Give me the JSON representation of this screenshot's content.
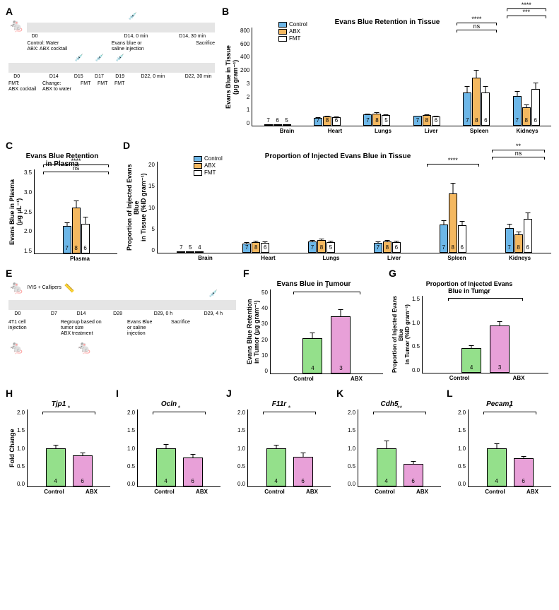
{
  "colors": {
    "control_blue": "#6db7e8",
    "abx_orange": "#f4b860",
    "fmt_white": "#ffffff",
    "control_green": "#94e08b",
    "abx_pink": "#e8a0d8",
    "axis": "#000000",
    "timeline_bg": "#e5e5e5"
  },
  "panelA": {
    "label": "A",
    "top": {
      "ticks": [
        "D0",
        "D14, 0 min",
        "D14, 30 min"
      ],
      "annotations": [
        "Control: Water\nABX: ABX cocktail",
        "Evans blue or\nsaline injection",
        "Sacrifice"
      ]
    },
    "bottom": {
      "ticks": [
        "D0",
        "D14",
        "D15",
        "D17",
        "D19",
        "D22, 0 min",
        "D22, 30 min"
      ],
      "annotations": [
        "FMT:\nABX cocktail",
        "Change:\nABX to water",
        "FMT",
        "FMT",
        "FMT",
        "",
        ""
      ]
    }
  },
  "panelB": {
    "label": "B",
    "title": "Evans Blue Retention in Tissue",
    "y_label": "Evans Blue in Tissue\n(μg gram⁻¹)",
    "ymax": 800,
    "ytick_step": 200,
    "ybreak_low": 3,
    "y_ticks": [
      "800",
      "600",
      "400",
      "200",
      "3",
      "2",
      "1",
      "0"
    ],
    "legend": [
      "Control",
      "ABX",
      "FMT"
    ],
    "categories": [
      "Brain",
      "Heart",
      "Lungs",
      "Liver",
      "Spleen",
      "Kidneys"
    ],
    "series": {
      "control": {
        "values": [
          1.5,
          65,
          90,
          78,
          270,
          240
        ],
        "n": [
          7,
          7,
          7,
          7,
          7,
          7
        ],
        "err": [
          0.5,
          10,
          15,
          12,
          60,
          50
        ]
      },
      "abx": {
        "values": [
          1.2,
          75,
          100,
          85,
          390,
          150
        ],
        "n": [
          6,
          8,
          8,
          8,
          8,
          8
        ],
        "err": [
          0.4,
          12,
          15,
          14,
          70,
          30
        ]
      },
      "fmt": {
        "values": [
          1.3,
          70,
          85,
          75,
          270,
          300
        ],
        "n": [
          5,
          6,
          5,
          6,
          6,
          6
        ],
        "err": [
          0.5,
          12,
          14,
          12,
          60,
          60
        ]
      }
    },
    "sigs": [
      {
        "group": 4,
        "label": "ns",
        "between": [
          0,
          2
        ]
      },
      {
        "group": 4,
        "label": "****",
        "between": [
          0,
          1
        ]
      },
      {
        "group": 5,
        "label": "***",
        "between": [
          0,
          2
        ]
      },
      {
        "group": 5,
        "label": "****",
        "between": [
          0,
          1
        ]
      }
    ]
  },
  "panelC": {
    "label": "C",
    "title": "Evans Blue Retention\nin Plasma",
    "y_label": "Evans Blue in Plasma\n(μg μL⁻¹)",
    "ymax": 3.5,
    "y_ticks": [
      "3.5",
      "3.0",
      "2.5",
      "2.0",
      "1.5"
    ],
    "categories": [
      "Plasma"
    ],
    "series": {
      "control": {
        "values": [
          2.15
        ],
        "n": [
          7
        ],
        "err": [
          0.12
        ]
      },
      "abx": {
        "values": [
          2.6
        ],
        "n": [
          8
        ],
        "err": [
          0.18
        ]
      },
      "fmt": {
        "values": [
          2.2
        ],
        "n": [
          6
        ],
        "err": [
          0.2
        ]
      }
    },
    "sigs": [
      {
        "label": "ns",
        "between": [
          0,
          2
        ]
      },
      {
        "label": "****",
        "between": [
          0,
          1
        ]
      }
    ]
  },
  "panelD": {
    "label": "D",
    "title": "Proportion of Injected Evans Blue in Tissue",
    "y_label": "Proportion of Injected Evans Blue\nin Tissue (%ID gram⁻¹)",
    "ymax": 20,
    "y_ticks": [
      "20",
      "15",
      "10",
      "5",
      "0"
    ],
    "legend": [
      "Control",
      "ABX",
      "FMT"
    ],
    "categories": [
      "Brain",
      "Heart",
      "Lungs",
      "Liver",
      "Spleen",
      "Kidneys"
    ],
    "series": {
      "control": {
        "values": [
          0.3,
          2.0,
          2.5,
          2.2,
          6.2,
          5.5
        ],
        "n": [
          7,
          7,
          7,
          7,
          7,
          7
        ],
        "err": [
          0.1,
          0.5,
          0.6,
          0.5,
          1.2,
          1.0
        ]
      },
      "abx": {
        "values": [
          0.25,
          2.3,
          2.8,
          2.5,
          13.0,
          4.0
        ],
        "n": [
          5,
          8,
          8,
          8,
          8,
          8
        ],
        "err": [
          0.1,
          0.5,
          0.6,
          0.6,
          2.5,
          0.8
        ]
      },
      "fmt": {
        "values": [
          0.3,
          2.2,
          2.4,
          2.3,
          6.0,
          7.5
        ],
        "n": [
          4,
          6,
          5,
          6,
          6,
          6
        ],
        "err": [
          0.1,
          0.5,
          0.5,
          0.5,
          1.2,
          1.5
        ]
      }
    },
    "sigs": [
      {
        "group": 4,
        "label": "****",
        "between": [
          0,
          1
        ]
      },
      {
        "group": 5,
        "label": "ns",
        "between": [
          0,
          1
        ]
      },
      {
        "group": 5,
        "label": "**",
        "between": [
          0,
          2
        ]
      }
    ]
  },
  "panelE": {
    "label": "E",
    "ticks": [
      "D0",
      "D7",
      "D14",
      "D28",
      "D29, 0 h",
      "D29, 4 h"
    ],
    "annotations_top": [
      "",
      "IVIS + Callipers",
      "",
      "",
      "",
      ""
    ],
    "annotations_bot": [
      "4T1 cell injection",
      "",
      "Regroup based on\ntumor size\nABX treatment",
      "",
      "Evans Blue\nor saline\ninjection",
      "Sacrifice"
    ]
  },
  "panelF": {
    "label": "F",
    "title": "Evans Blue in Tumour",
    "y_label": "Evans Blue Retention\nin Tumor (μg gram⁻¹)",
    "ymax": 50,
    "y_ticks": [
      "50",
      "40",
      "30",
      "20",
      "10",
      "0"
    ],
    "categories": [
      "Control",
      "ABX"
    ],
    "series": {
      "control": {
        "values": [
          21
        ],
        "n": [
          4
        ],
        "err": [
          4
        ]
      },
      "abx": {
        "values": [
          34
        ],
        "n": [
          3
        ],
        "err": [
          5
        ]
      }
    },
    "sig": "*"
  },
  "panelG": {
    "label": "G",
    "title": "Proportion of Injected Evans\nBlue in Tumor",
    "y_label": "Proportion of Injected Evans Blue\nin Tumor (%ID gram⁻¹)",
    "ymax": 1.5,
    "y_ticks": [
      "1.5",
      "1.0",
      "0.5",
      "0.0"
    ],
    "categories": [
      "Control",
      "ABX"
    ],
    "series": {
      "control": {
        "values": [
          0.48
        ],
        "n": [
          4
        ],
        "err": [
          0.08
        ]
      },
      "abx": {
        "values": [
          0.92
        ],
        "n": [
          3
        ],
        "err": [
          0.1
        ]
      }
    },
    "sig": "**"
  },
  "genePanels": {
    "y_label": "Fold Change",
    "ymax": 2.0,
    "y_ticks": [
      "2.0",
      "1.5",
      "1.0",
      "0.5",
      "0.0"
    ],
    "categories": [
      "Control",
      "ABX"
    ],
    "n": [
      4,
      6
    ],
    "panels": [
      {
        "label": "H",
        "gene": "Tjp1",
        "control": 1.0,
        "abx": 0.8,
        "ctrl_err": 0.1,
        "abx_err": 0.1,
        "sig": "*"
      },
      {
        "label": "I",
        "gene": "Ocln",
        "control": 1.0,
        "abx": 0.75,
        "ctrl_err": 0.12,
        "abx_err": 0.12,
        "sig": "*"
      },
      {
        "label": "J",
        "gene": "F11r",
        "control": 1.0,
        "abx": 0.78,
        "ctrl_err": 0.1,
        "abx_err": 0.12,
        "sig": "*"
      },
      {
        "label": "K",
        "gene": "Cdh5",
        "control": 1.0,
        "abx": 0.58,
        "ctrl_err": 0.22,
        "abx_err": 0.1,
        "sig": "**"
      },
      {
        "label": "L",
        "gene": "Pecam1",
        "control": 1.0,
        "abx": 0.73,
        "ctrl_err": 0.15,
        "abx_err": 0.08,
        "sig": "*"
      }
    ]
  }
}
